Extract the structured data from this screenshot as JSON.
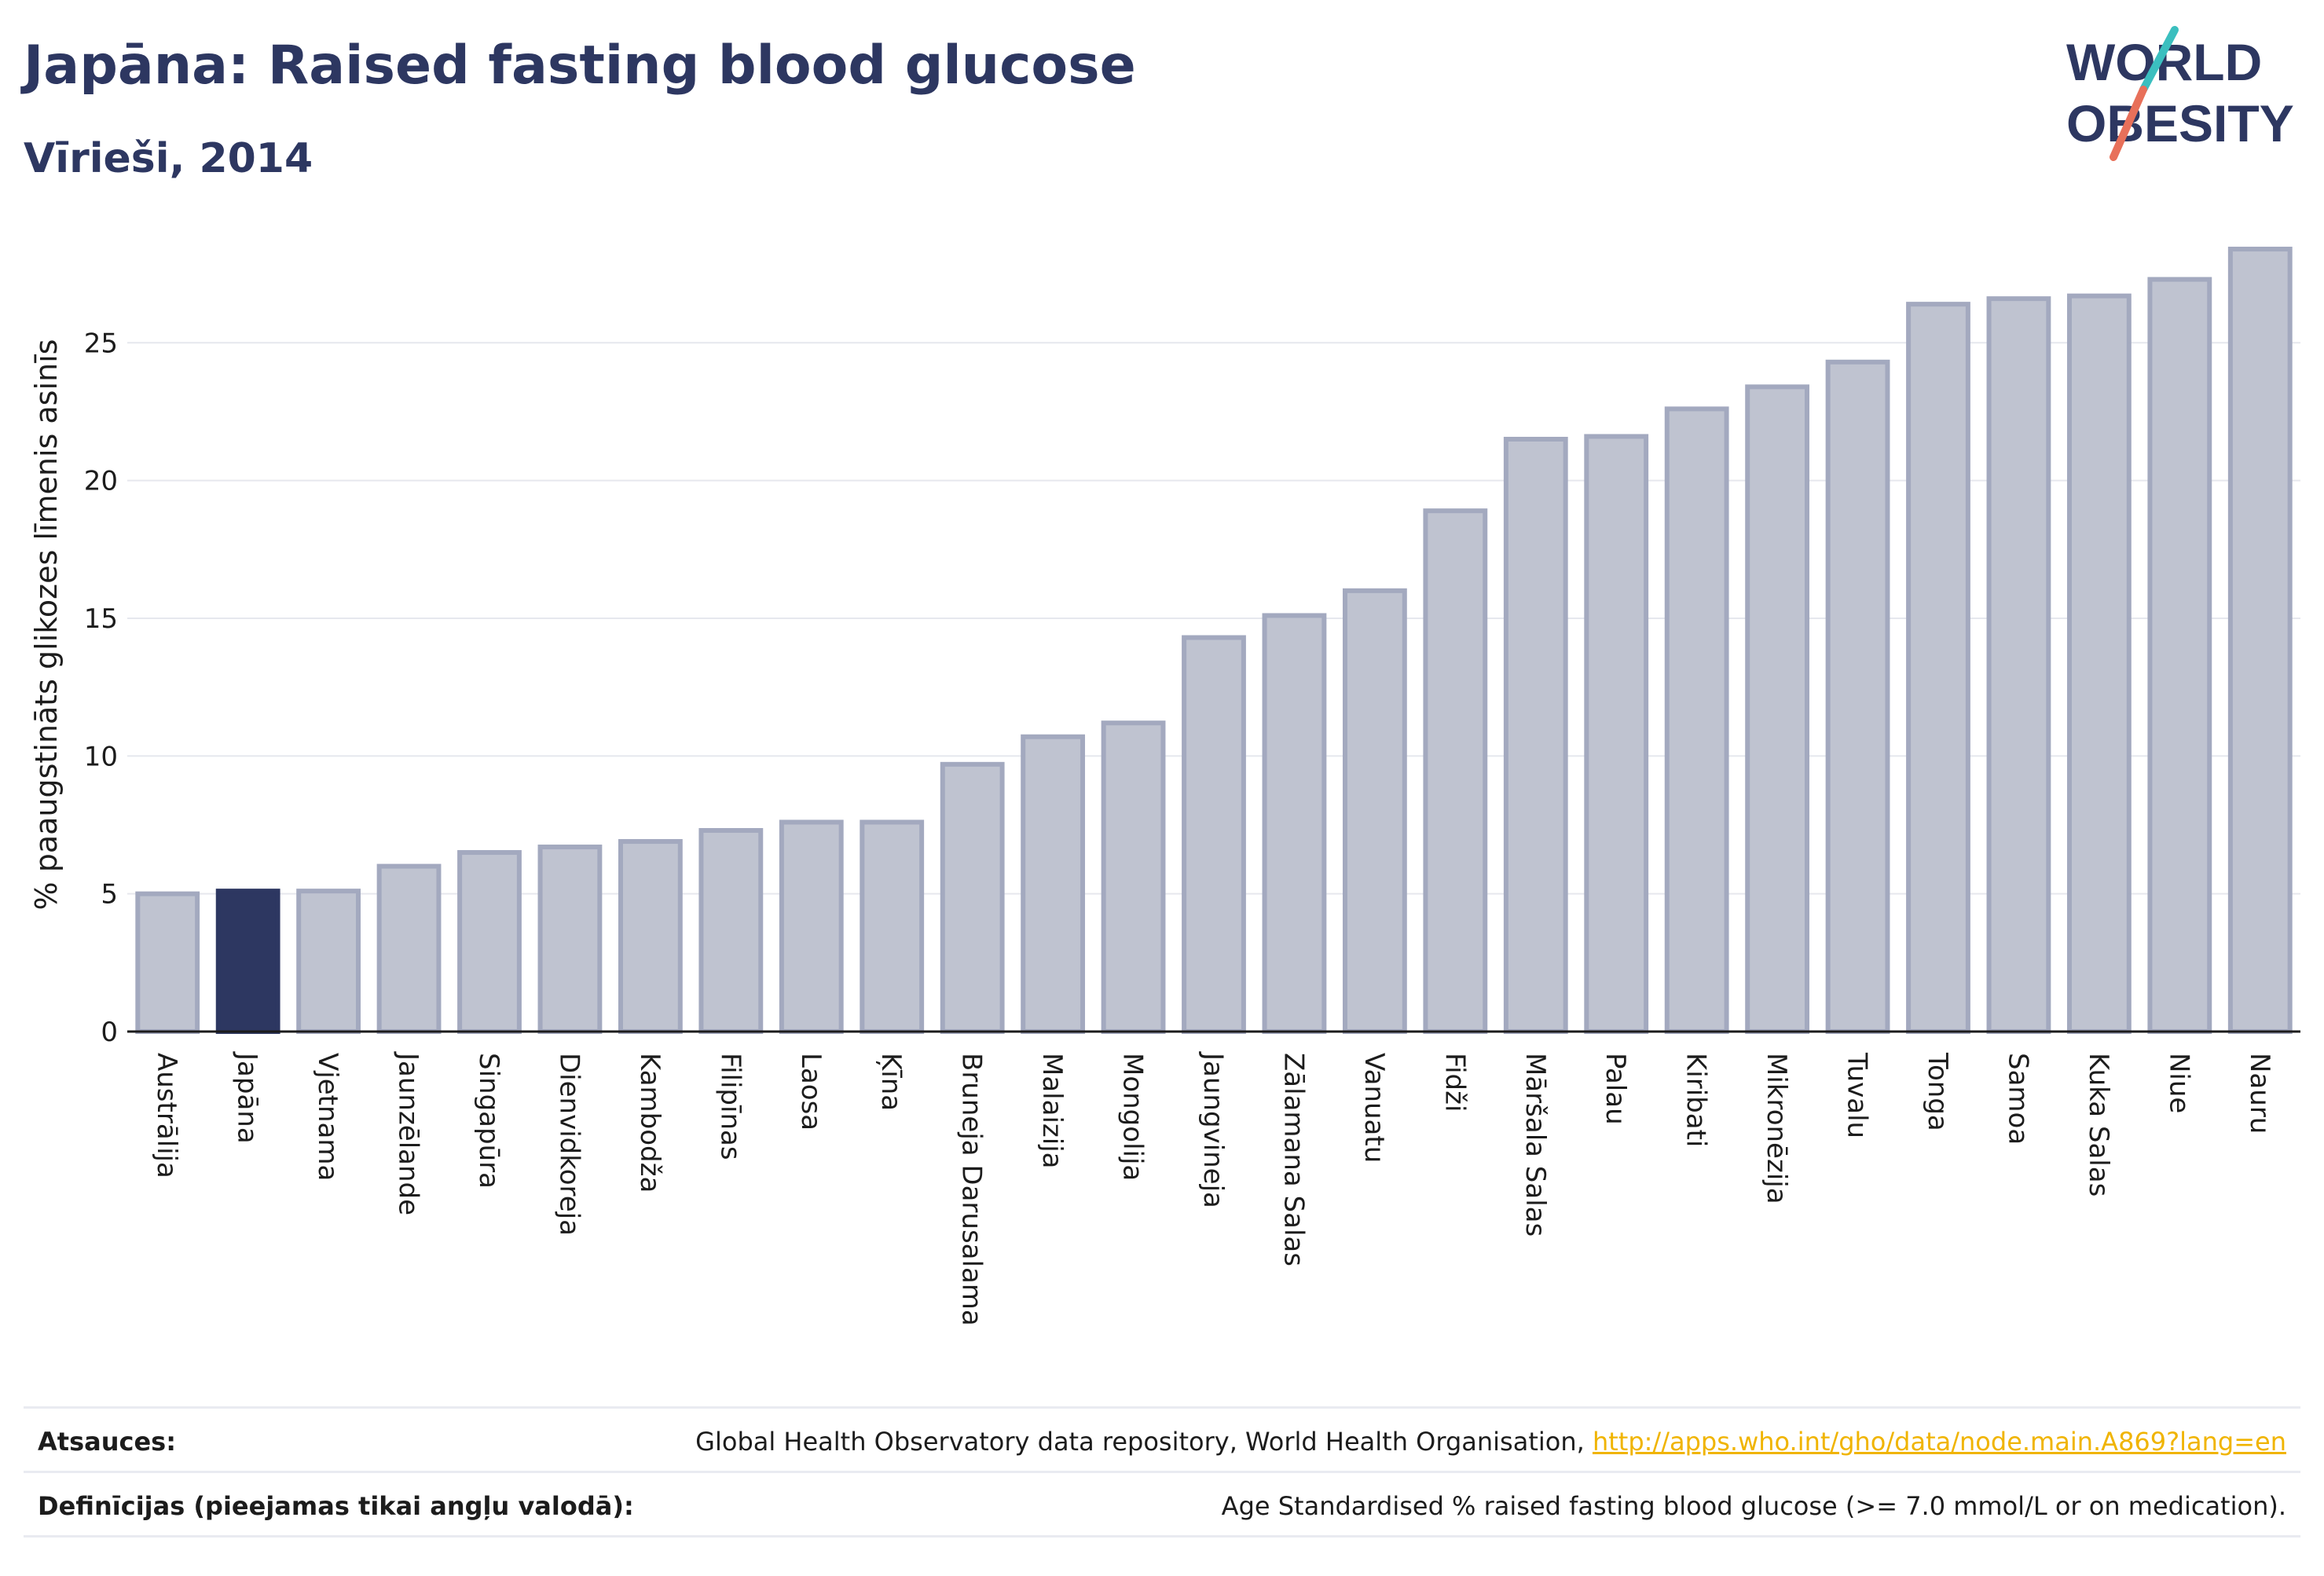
{
  "header": {
    "title": "Japāna: Raised fasting blood glucose",
    "subtitle": "Vīrieši, 2014"
  },
  "logo": {
    "line1": "WORLD",
    "line2": "OBESITY",
    "colors": {
      "text": "#2d3761",
      "slash_teal": "#3bbfbf",
      "slash_red": "#e8705a"
    }
  },
  "colors": {
    "bar_fill": "#bfc3d0",
    "bar_stroke": "#a3a9bf",
    "highlight": "#2d3761",
    "grid": "#e6e8ee",
    "axis": "#1c1c1c"
  },
  "chart_data": {
    "type": "bar",
    "ylabel": "% paaugstināts glikozes līmenis asinīs",
    "ylim": [
      0,
      28.6
    ],
    "yticks": [
      0,
      5,
      10,
      15,
      20,
      25
    ],
    "grid": true,
    "highlight": "Japāna",
    "categories": [
      "Austrālija",
      "Japāna",
      "Vjetnama",
      "Jaunzēlande",
      "Singapūra",
      "Dienvidkoreja",
      "Kambodža",
      "Filipīnas",
      "Laosa",
      "Ķīna",
      "Bruneja Darusalama",
      "Malaizija",
      "Mongolija",
      "Jaungvineja",
      "Zālamana Salas",
      "Vanuatu",
      "Fidži",
      "Māršala Salas",
      "Palau",
      "Kiribati",
      "Mikronēzija",
      "Tuvalu",
      "Tonga",
      "Samoa",
      "Kuka Salas",
      "Niue",
      "Nauru"
    ],
    "values": [
      5.0,
      5.1,
      5.1,
      6.0,
      6.5,
      6.7,
      6.9,
      7.3,
      7.6,
      7.6,
      9.7,
      10.7,
      11.2,
      14.3,
      15.1,
      16.0,
      18.9,
      21.5,
      21.6,
      22.6,
      23.4,
      24.3,
      26.4,
      26.6,
      26.7,
      27.3,
      28.4
    ]
  },
  "footer": {
    "sources_label": "Atsauces:",
    "sources_text": "Global Health Observatory data repository, World Health Organisation, ",
    "sources_link": "http://apps.who.int/gho/data/node.main.A869?lang=en",
    "definitions_label": "Definīcijas (pieejamas tikai angļu valodā):",
    "definitions_text": "Age Standardised % raised fasting blood glucose (>= 7.0 mmol/L or on medication)."
  }
}
